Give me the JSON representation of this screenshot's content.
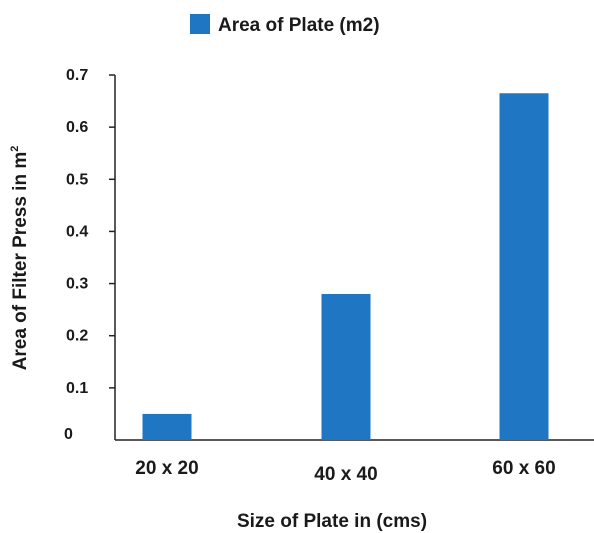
{
  "chart_data": {
    "type": "bar",
    "categories": [
      "20 x 20",
      "40 x 40",
      "60 x 60"
    ],
    "series": [
      {
        "name": "Area of Plate (m2)",
        "values": [
          0.05,
          0.28,
          0.665
        ],
        "color": "#1f77c4"
      }
    ],
    "xlabel": "Size of Plate in (cms)",
    "ylabel": "Area of Filter Press in m",
    "ylabel_superscript": "2",
    "ylim": [
      0,
      0.7
    ],
    "yticks": [
      0,
      0.1,
      0.2,
      0.3,
      0.4,
      0.5,
      0.6,
      0.7
    ],
    "ytick_labels": [
      "0",
      "0.1",
      "0.2",
      "0.3",
      "0.4",
      "0.5",
      "0.6",
      "0.7"
    ],
    "grid": false,
    "legend_position": "top-center"
  }
}
